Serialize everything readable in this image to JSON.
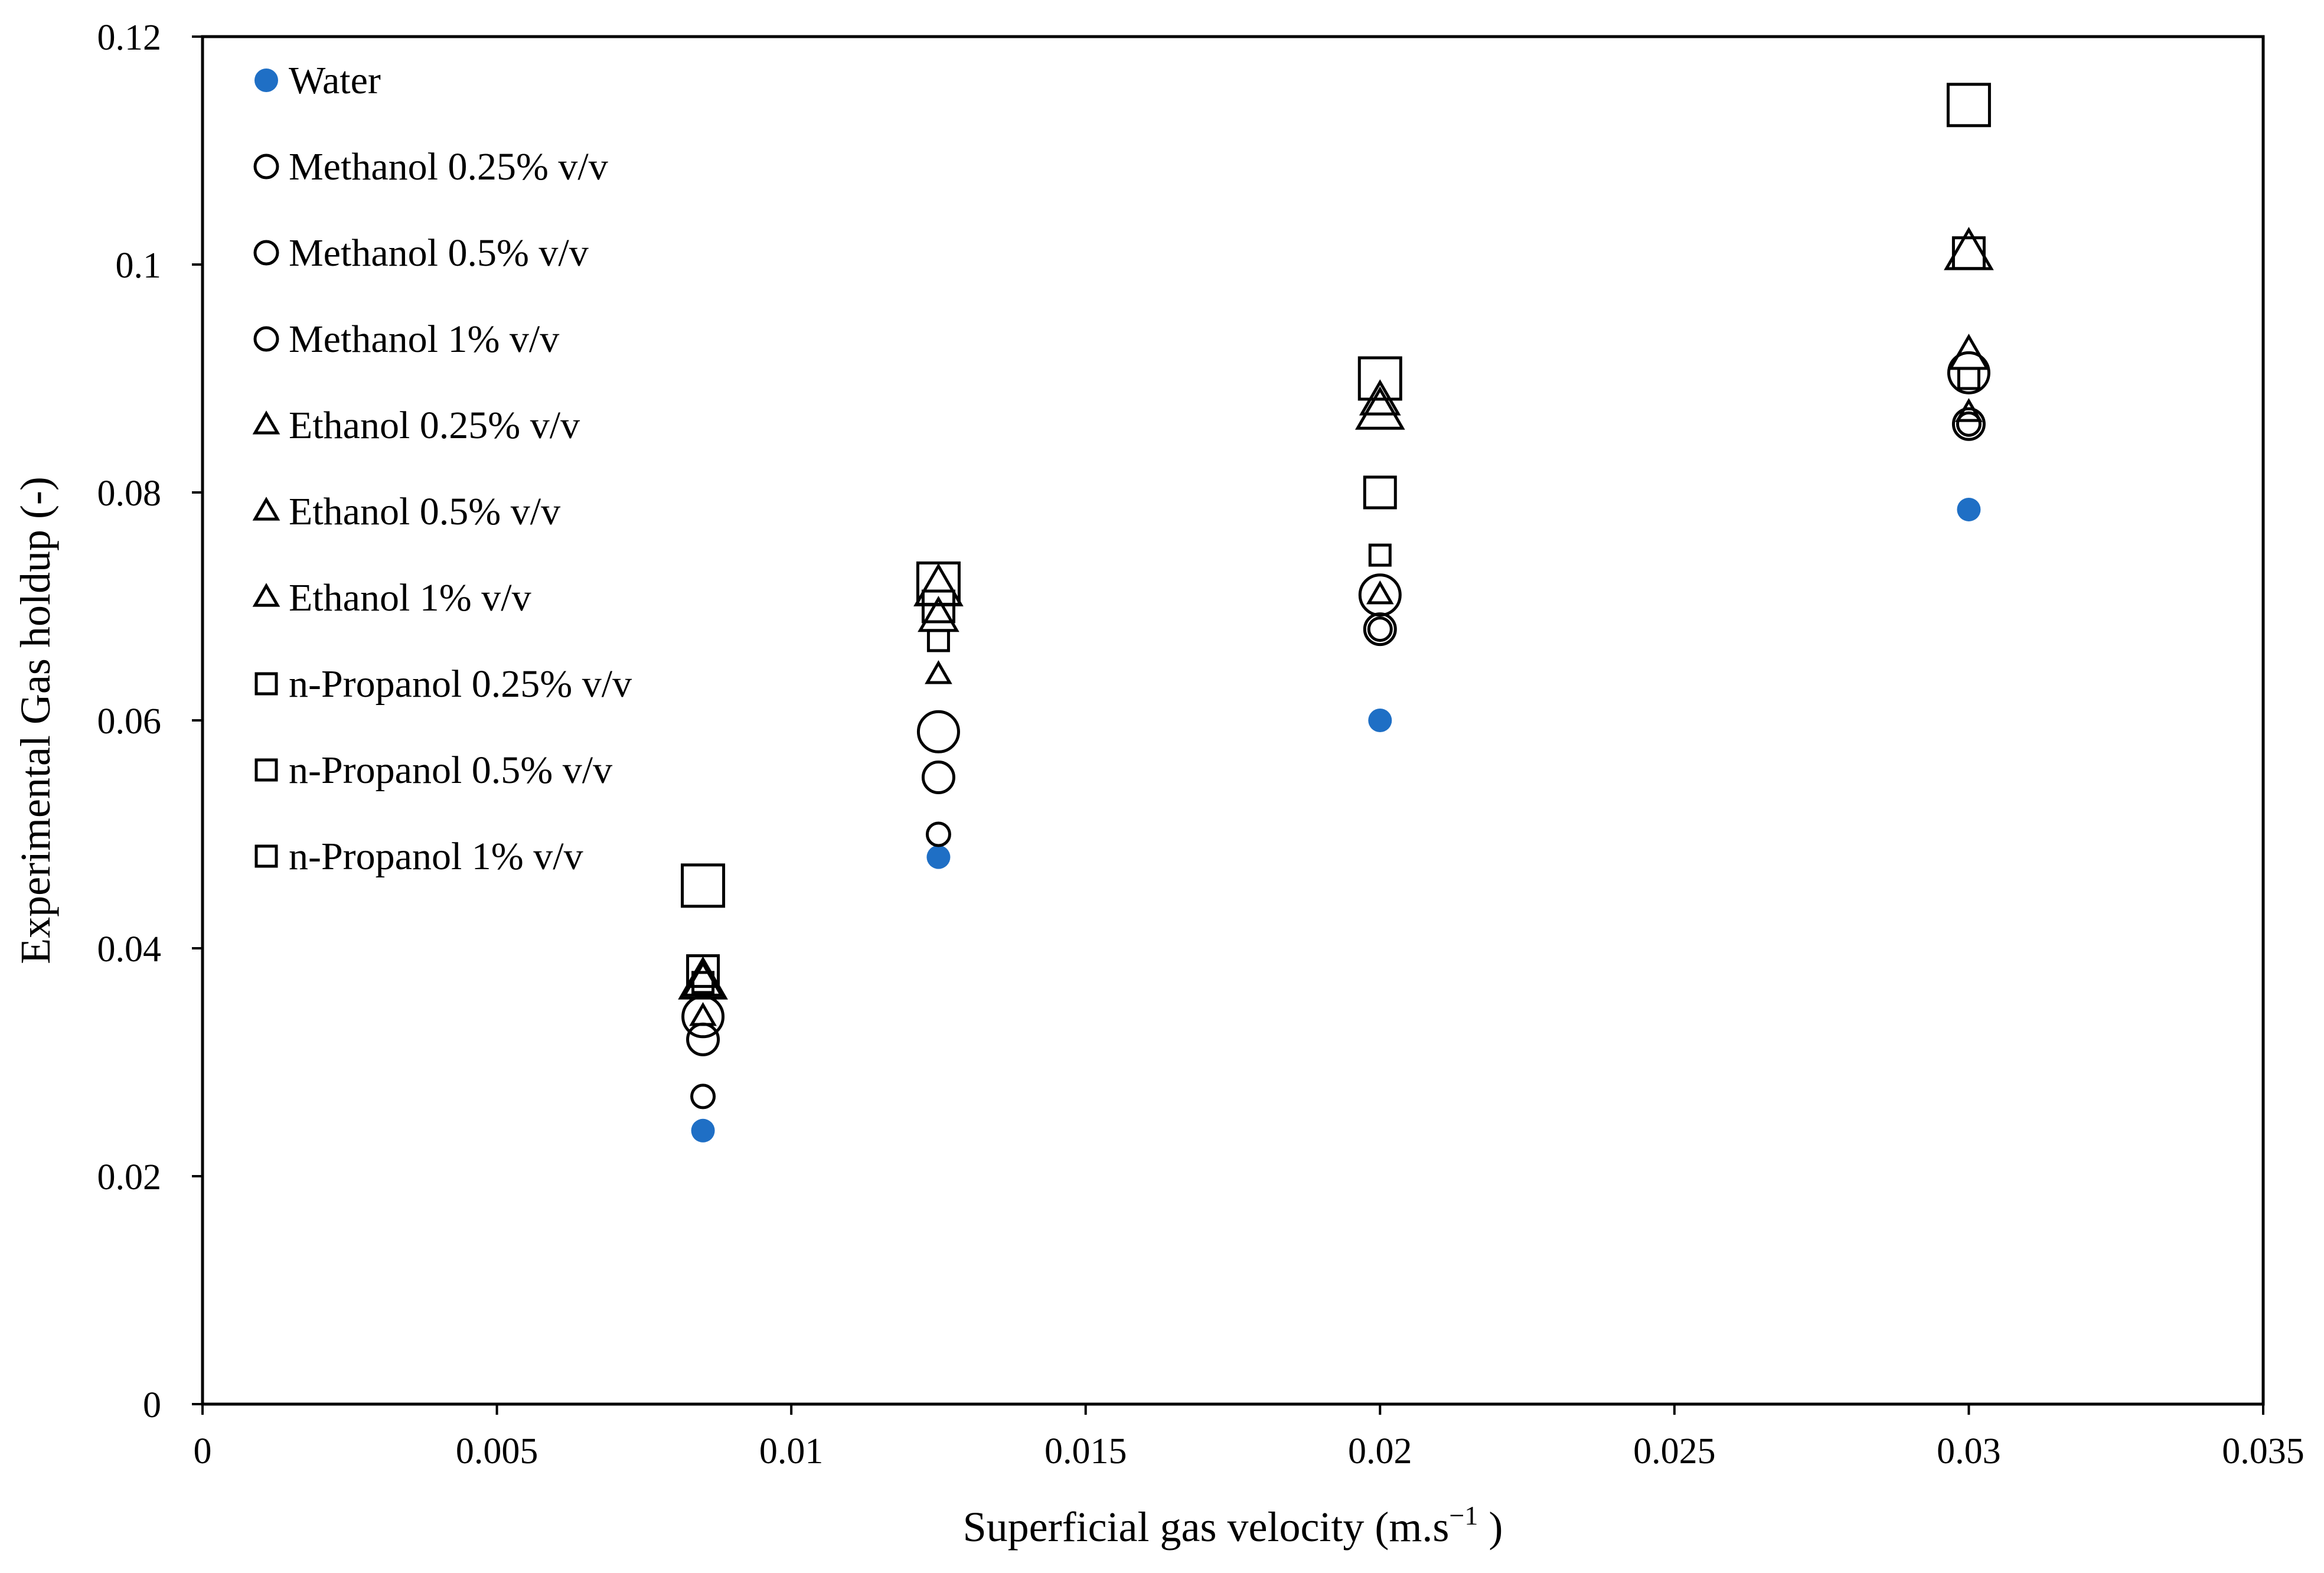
{
  "chart_data": {
    "type": "scatter",
    "title": "",
    "xlabel": "Superficial gas velocity (m.s",
    "xlabel_superscript": "−1",
    "xlabel_suffix": " )",
    "ylabel": "Experimental Gas holdup (-)",
    "xlim": [
      0,
      0.035
    ],
    "ylim": [
      0,
      0.12
    ],
    "xticks": [
      0,
      0.005,
      0.01,
      0.015,
      0.02,
      0.025,
      0.03,
      0.035
    ],
    "xtick_labels": [
      "0",
      "0.005",
      "0.01",
      "0.015",
      "0.02",
      "0.025",
      "0.03",
      "0.035"
    ],
    "yticks": [
      0,
      0.02,
      0.04,
      0.06,
      0.08,
      0.1,
      0.12
    ],
    "ytick_labels": [
      "0",
      "0.02",
      "0.04",
      "0.06",
      "0.08",
      "0.1",
      "0.12"
    ],
    "grid": false,
    "legend_position": "top-left",
    "x": [
      0.0085,
      0.0125,
      0.02,
      0.03
    ],
    "series": [
      {
        "name": "Water",
        "marker": "circle",
        "filled": true,
        "color": "#1f6fc5",
        "size": "small",
        "values": [
          0.024,
          0.048,
          0.06,
          0.0785
        ]
      },
      {
        "name": "Methanol 0.25% v/v",
        "marker": "circle",
        "filled": false,
        "color": "#000000",
        "size": "small",
        "values": [
          0.027,
          0.05,
          0.068,
          0.086
        ]
      },
      {
        "name": "Methanol 0.5% v/v",
        "marker": "circle",
        "filled": false,
        "color": "#000000",
        "size": "medium",
        "values": [
          0.032,
          0.055,
          0.068,
          0.086
        ]
      },
      {
        "name": "Methanol 1% v/v",
        "marker": "circle",
        "filled": false,
        "color": "#000000",
        "size": "large",
        "values": [
          0.034,
          0.059,
          0.071,
          0.0905
        ]
      },
      {
        "name": "Ethanol 0.25% v/v",
        "marker": "triangle",
        "filled": false,
        "color": "#000000",
        "size": "small",
        "values": [
          0.034,
          0.064,
          0.071,
          0.087
        ]
      },
      {
        "name": "Ethanol 0.5% v/v",
        "marker": "triangle",
        "filled": false,
        "color": "#000000",
        "size": "medium",
        "values": [
          0.037,
          0.069,
          0.088,
          0.092
        ]
      },
      {
        "name": "Ethanol 1% v/v",
        "marker": "triangle",
        "filled": false,
        "color": "#000000",
        "size": "large",
        "values": [
          0.037,
          0.0715,
          0.087,
          0.101
        ]
      },
      {
        "name": "n-Propanol 0.25% v/v",
        "marker": "square",
        "filled": false,
        "color": "#000000",
        "size": "small",
        "values": [
          0.037,
          0.067,
          0.0745,
          0.09
        ]
      },
      {
        "name": "n-Propanol 0.5% v/v",
        "marker": "square",
        "filled": false,
        "color": "#000000",
        "size": "medium",
        "values": [
          0.038,
          0.07,
          0.08,
          0.101
        ]
      },
      {
        "name": "n-Propanol 1% v/v",
        "marker": "square",
        "filled": false,
        "color": "#000000",
        "size": "large",
        "values": [
          0.0455,
          0.072,
          0.09,
          0.114
        ]
      }
    ]
  }
}
